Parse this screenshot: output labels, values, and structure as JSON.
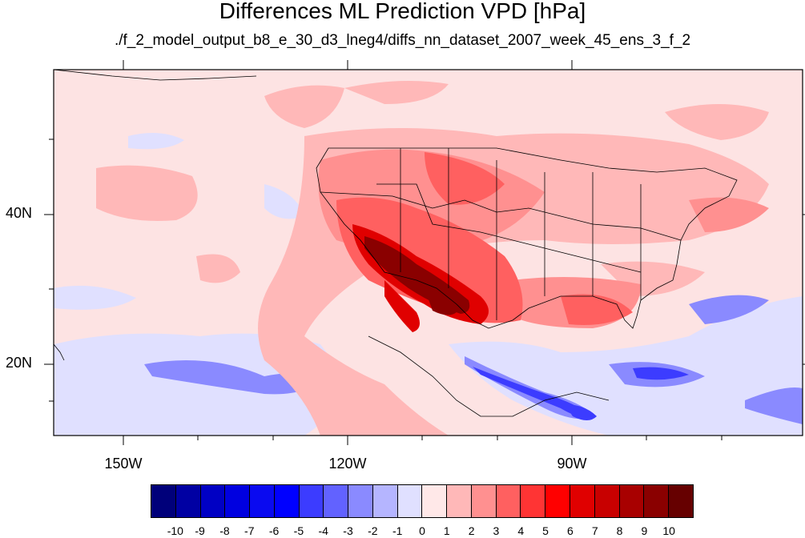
{
  "title": "Differences ML Prediction VPD [hPa]",
  "subtitle": "./f_2_model_output_b8_e_30_d3_lneg4/diffs_nn_dataset_2007_week_45_ens_3_f_2",
  "map": {
    "lat_labels": [
      "40N",
      "20N"
    ],
    "lon_labels": [
      "150W",
      "120W",
      "90W"
    ],
    "background_color": "#fde3e3"
  },
  "colorbar": {
    "labels": [
      "-10",
      "-9",
      "-8",
      "-7",
      "-6",
      "-5",
      "-4",
      "-3",
      "-2",
      "-1",
      "0",
      "1",
      "2",
      "3",
      "4",
      "5",
      "6",
      "7",
      "8",
      "9",
      "10"
    ],
    "colors": [
      "#00007a",
      "#0000a3",
      "#0000c4",
      "#0000e0",
      "#0a0af0",
      "#0000ff",
      "#3c3cff",
      "#6262ff",
      "#8a8aff",
      "#b5b5ff",
      "#e0e0ff",
      "#ffe8e8",
      "#ffb8b8",
      "#ff9090",
      "#ff6060",
      "#ff3434",
      "#ff0000",
      "#e00000",
      "#c80000",
      "#a80000",
      "#8a0000",
      "#660000"
    ]
  }
}
